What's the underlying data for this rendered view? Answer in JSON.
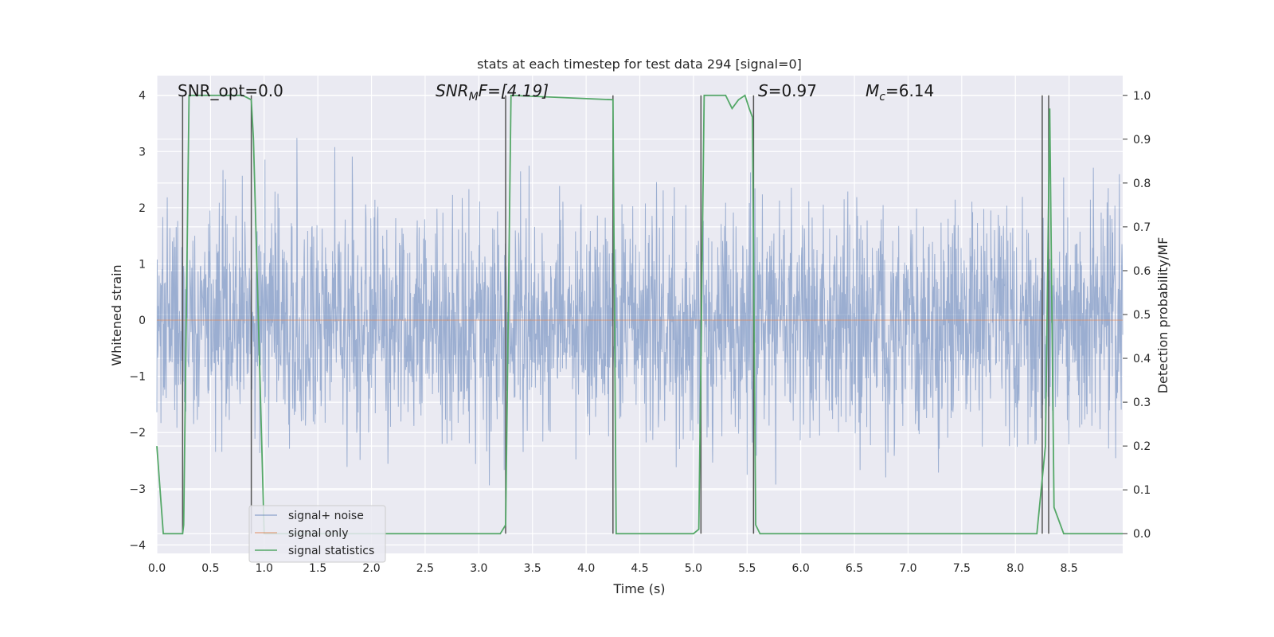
{
  "chart_data": {
    "type": "line",
    "title": "stats at each timestep for test data 294 [signal=0]",
    "xlabel": "Time (s)",
    "ylabel": "Whitened strain",
    "y2label": "Detection probability/MF",
    "xlim": [
      0.0,
      9.0
    ],
    "ylim": [
      -4.15,
      4.35
    ],
    "y2lim": [
      -0.045,
      1.045
    ],
    "x_ticks": [
      "0.0",
      "0.5",
      "1.0",
      "1.5",
      "2.0",
      "2.5",
      "3.0",
      "3.5",
      "4.0",
      "4.5",
      "5.0",
      "5.5",
      "6.0",
      "6.5",
      "7.0",
      "7.5",
      "8.0",
      "8.5"
    ],
    "y_ticks": [
      "4",
      "3",
      "2",
      "1",
      "0",
      "−1",
      "−2",
      "−3",
      "−4"
    ],
    "y2_ticks": [
      "1.0",
      "0.9",
      "0.8",
      "0.7",
      "0.6",
      "0.5",
      "0.4",
      "0.3",
      "0.2",
      "0.1",
      "0.0"
    ],
    "annotations": {
      "snr_opt": "SNR_opt=0.0",
      "snr_mf_base": "SNR",
      "snr_mf_sub": "M",
      "snr_mf_rest": "F=[4.19]",
      "s_base": "S",
      "s_rest": "=0.97",
      "mc_base": "M",
      "mc_sub": "c",
      "mc_rest": "=6.14"
    },
    "grid": true,
    "legend_position": "lower-left",
    "series": [
      {
        "name": "signal+ noise",
        "color": "#4c72b0",
        "kind": "noise",
        "x_range": [
          0.0,
          9.0
        ],
        "sigma": 1.0
      },
      {
        "name": "signal only",
        "color": "#dd8452",
        "kind": "line",
        "x": [
          0.0,
          9.0
        ],
        "y": [
          0.0,
          0.0
        ]
      },
      {
        "name": "signal statistics",
        "color": "#55a868",
        "kind": "line",
        "axis": "right",
        "x": [
          0.0,
          0.03,
          0.06,
          0.24,
          0.25,
          0.3,
          0.8,
          0.88,
          0.9,
          1.0,
          1.02,
          3.2,
          3.25,
          3.3,
          4.25,
          4.28,
          4.45,
          5.0,
          5.05,
          5.1,
          5.3,
          5.36,
          5.42,
          5.48,
          5.52,
          5.55,
          5.58,
          5.62,
          8.2,
          8.28,
          8.32,
          8.36,
          8.45,
          9.0
        ],
        "y": [
          0.2,
          0.1,
          0.0,
          0.0,
          0.02,
          1.0,
          1.0,
          0.99,
          0.9,
          0.0,
          0.0,
          0.0,
          0.02,
          1.0,
          0.99,
          0.0,
          0.0,
          0.0,
          0.01,
          1.0,
          1.0,
          0.97,
          0.99,
          1.0,
          0.97,
          0.95,
          0.02,
          0.0,
          0.0,
          0.2,
          0.97,
          0.06,
          0.0,
          0.0
        ]
      }
    ],
    "vlines": [
      0.24,
      0.88,
      3.25,
      4.25,
      5.07,
      5.56,
      8.25,
      8.31
    ]
  }
}
